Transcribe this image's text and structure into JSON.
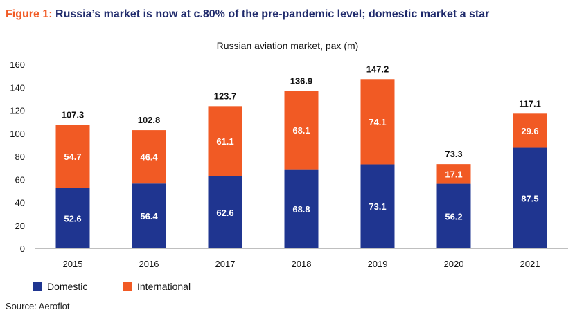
{
  "figure": {
    "label": "Figure 1:",
    "title": "Russia’s market is now at c.80% of the pre-pandemic level; domestic market a star",
    "source": "Source: Aeroflot"
  },
  "colors": {
    "domestic": "#1f3590",
    "international": "#f15a24",
    "title_label": "#f15a24",
    "title_text": "#1f2a6b"
  },
  "chart_data": {
    "type": "bar",
    "stacked": true,
    "title": "Russian aviation market, pax (m)",
    "xlabel": "",
    "ylabel": "",
    "categories": [
      "2015",
      "2016",
      "2017",
      "2018",
      "2019",
      "2020",
      "2021"
    ],
    "series": [
      {
        "name": "Domestic",
        "values": [
          52.6,
          56.4,
          62.6,
          68.8,
          73.1,
          56.2,
          87.5
        ]
      },
      {
        "name": "International",
        "values": [
          54.7,
          46.4,
          61.1,
          68.1,
          74.1,
          17.1,
          29.6
        ]
      }
    ],
    "totals": [
      107.3,
      102.8,
      123.7,
      136.9,
      147.2,
      73.3,
      117.1
    ],
    "ylim": [
      0,
      160
    ],
    "yticks": [
      0,
      20,
      40,
      60,
      80,
      100,
      120,
      140,
      160
    ],
    "grid": false,
    "legend_position": "bottom-left"
  }
}
